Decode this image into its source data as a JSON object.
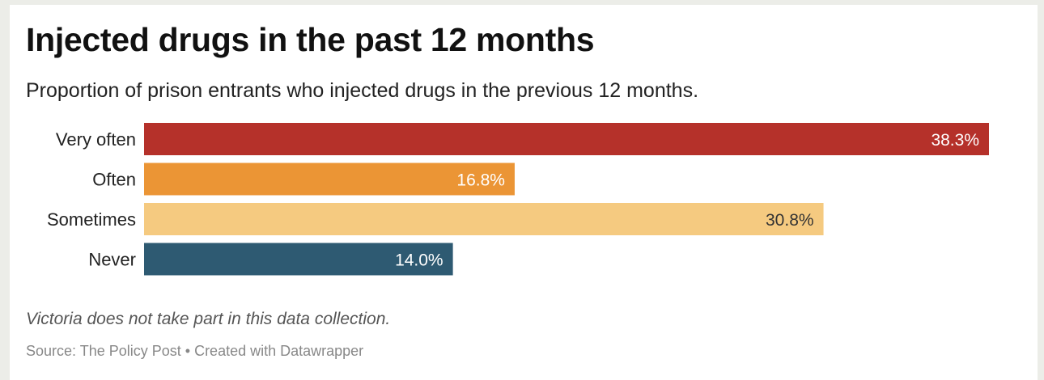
{
  "title": "Injected drugs in the past 12 months",
  "subtitle": "Proportion of prison entrants who injected drugs in the previous 12 months.",
  "note": "Victoria does not take part in this data collection.",
  "source": "Source: The Policy Post • Created with Datawrapper",
  "chart_data": {
    "type": "bar",
    "orientation": "horizontal",
    "categories": [
      "Very often",
      "Often",
      "Sometimes",
      "Never"
    ],
    "values": [
      38.3,
      16.8,
      30.8,
      14.0
    ],
    "value_labels": [
      "38.3%",
      "16.8%",
      "30.8%",
      "14.0%"
    ],
    "colors": [
      "#b5312a",
      "#eb9535",
      "#f5ca80",
      "#2e5a72"
    ],
    "label_colors": [
      "#ffffff",
      "#ffffff",
      "#333333",
      "#ffffff"
    ],
    "xlim": [
      0,
      38.3
    ],
    "grid": false,
    "legend": "none"
  }
}
